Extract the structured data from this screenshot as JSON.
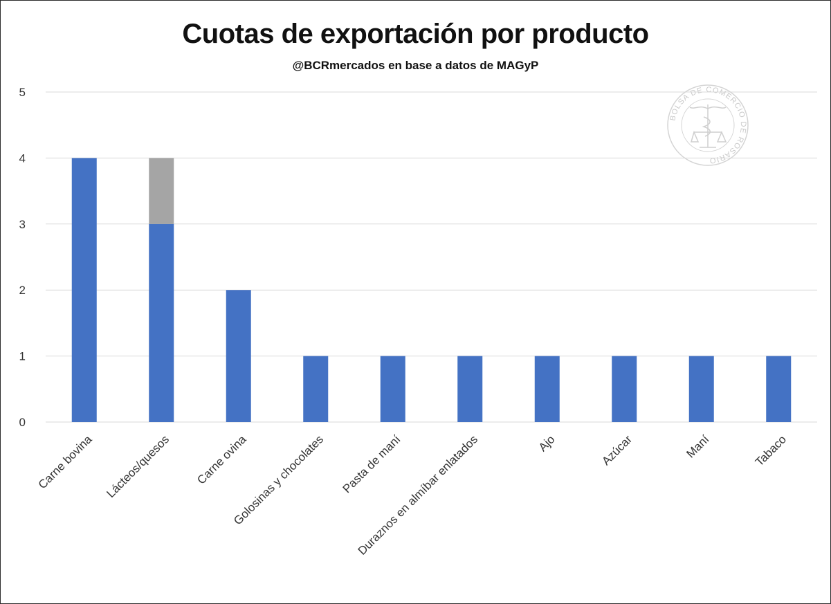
{
  "chart_data": {
    "type": "bar",
    "stacked": true,
    "title": "Cuotas de exportación por producto",
    "subtitle": "@BCRmercados en base a datos de MAGyP",
    "categories": [
      "Carne bovina",
      "Lácteos/quesos",
      "Carne ovina",
      "Golosinas y chocolates",
      "Pasta de maní",
      "Duraznos en almíbar enlatados",
      "Ajo",
      "Azúcar",
      "Maní",
      "Tabaco"
    ],
    "series": [
      {
        "values": [
          4,
          3,
          2,
          1,
          1,
          1,
          1,
          1,
          1,
          1
        ],
        "color": "#4472C4"
      },
      {
        "values": [
          0,
          1,
          0,
          0,
          0,
          0,
          0,
          0,
          0,
          0
        ],
        "color": "#A5A5A5"
      }
    ],
    "ylim": [
      0,
      5
    ],
    "yticks": [
      0,
      1,
      2,
      3,
      4,
      5
    ],
    "grid": true,
    "gridline_color": "#d9d9d9",
    "watermark": {
      "text": "BOLSA DE COMERCIO DE ROSARIO",
      "color": "#c9c9c9"
    }
  }
}
